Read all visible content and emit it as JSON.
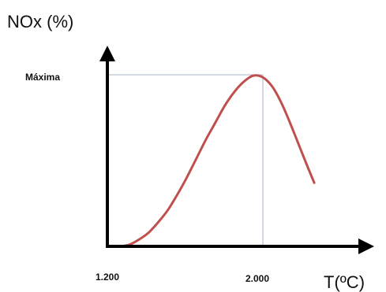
{
  "chart_data": {
    "type": "line",
    "title": "",
    "ylabel": "NOx (%)",
    "xlabel": "T(ºC)",
    "x_tick_labels": [
      "1.200",
      "2.000"
    ],
    "y_tick_labels": [
      "Máxima"
    ],
    "grid": false,
    "legend": "none",
    "colors": {
      "curve": "#c0504d",
      "axes": "#000000",
      "guides": "#aab4c8"
    },
    "series": [
      {
        "x": [
          1200,
          1250,
          1300,
          1350,
          1400,
          1450,
          1500,
          1550,
          1600,
          1650,
          1700,
          1750,
          1800,
          1850,
          1900,
          1950,
          2000,
          2050,
          2100,
          2150,
          2200,
          2240,
          2270
        ],
        "y": [
          0.0,
          0.0,
          0.01,
          0.04,
          0.08,
          0.14,
          0.21,
          0.3,
          0.4,
          0.51,
          0.62,
          0.72,
          0.82,
          0.9,
          0.96,
          0.995,
          0.985,
          0.93,
          0.83,
          0.7,
          0.56,
          0.45,
          0.37
        ]
      }
    ]
  }
}
